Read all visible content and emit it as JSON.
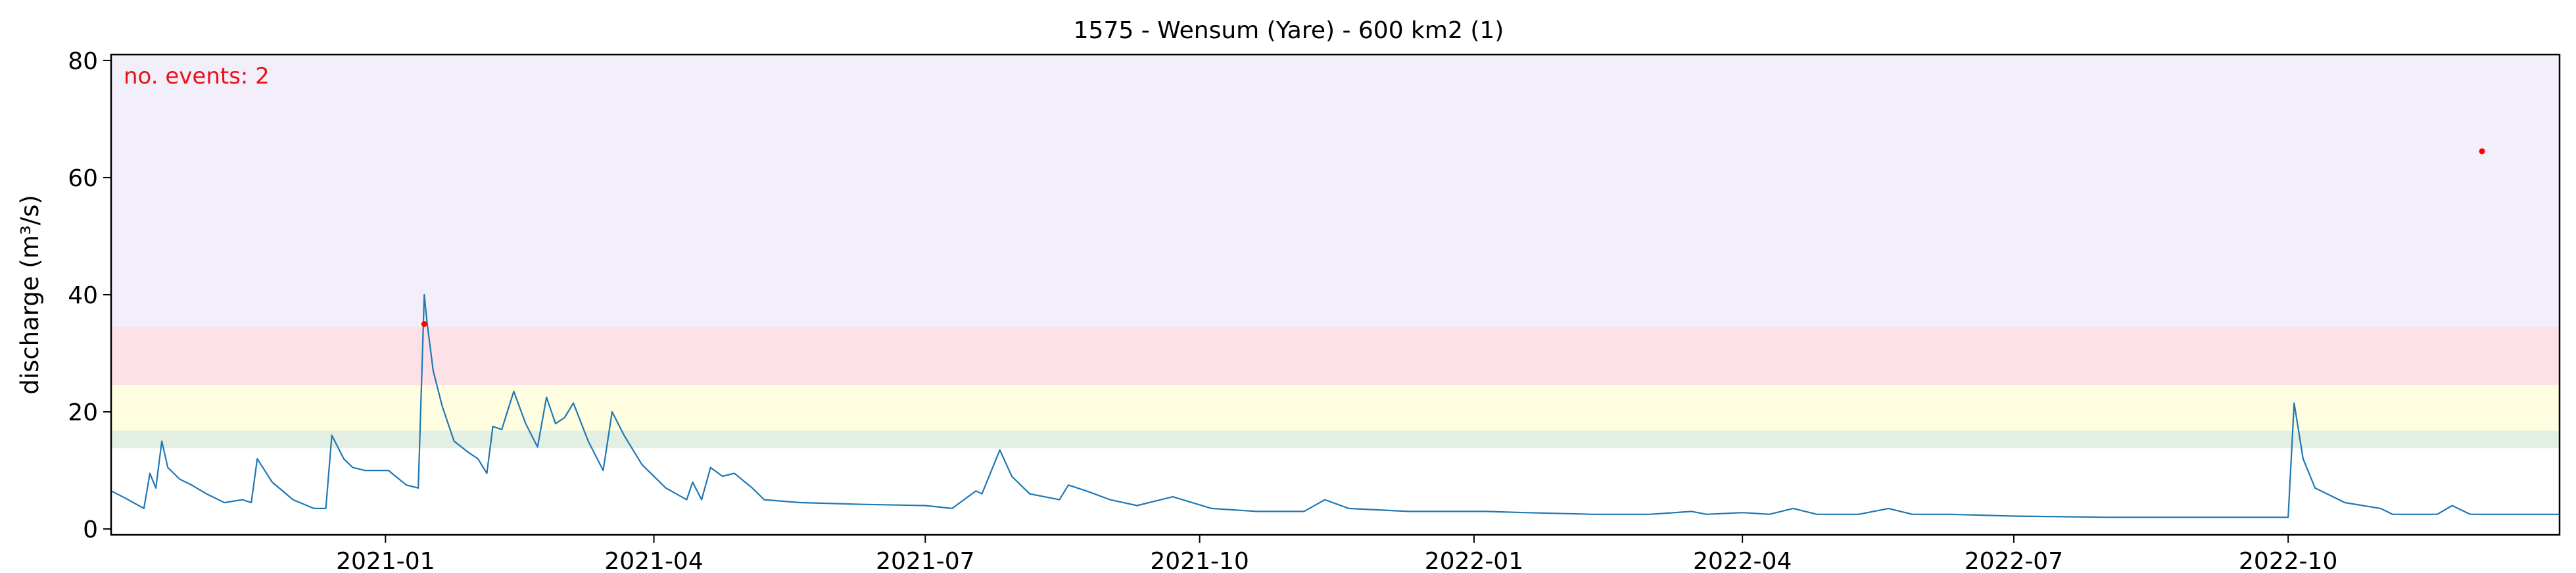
{
  "chart_data": {
    "type": "line",
    "title": "1575 - Wensum (Yare) - 600 km2 (1)",
    "xlabel": "",
    "ylabel": "discharge (m³/s)",
    "annotation": "no. events: 2",
    "xlim": [
      "2020-10-01",
      "2022-12-31"
    ],
    "ylim": [
      -1,
      81
    ],
    "x_ticks": [
      "2021-01-01",
      "2021-04-01",
      "2021-07-01",
      "2021-10-01",
      "2022-01-01",
      "2022-04-01",
      "2022-07-01",
      "2022-10-01"
    ],
    "x_tick_labels": [
      "2021-01",
      "2021-04",
      "2021-07",
      "2021-10",
      "2022-01",
      "2022-04",
      "2022-07",
      "2022-10"
    ],
    "y_ticks": [
      0,
      20,
      40,
      60,
      80
    ],
    "grid": false,
    "threshold_bands": [
      {
        "from": 13.8,
        "to": 16.8,
        "color": "#e2efe2"
      },
      {
        "from": 16.8,
        "to": 24.6,
        "color": "#fefde0"
      },
      {
        "from": 24.6,
        "to": 34.5,
        "color": "#fee1e6"
      },
      {
        "from": 34.5,
        "to": 81,
        "color": "#f2eefa"
      }
    ],
    "series": [
      {
        "color": "#1f77b4",
        "points": [
          [
            "2020-10-01",
            6.5
          ],
          [
            "2020-10-06",
            5.2
          ],
          [
            "2020-10-12",
            3.5
          ],
          [
            "2020-10-14",
            9.5
          ],
          [
            "2020-10-16",
            7.0
          ],
          [
            "2020-10-18",
            15.0
          ],
          [
            "2020-10-20",
            10.5
          ],
          [
            "2020-10-24",
            8.5
          ],
          [
            "2020-10-28",
            7.5
          ],
          [
            "2020-11-02",
            6.0
          ],
          [
            "2020-11-08",
            4.5
          ],
          [
            "2020-11-14",
            5.0
          ],
          [
            "2020-11-17",
            4.5
          ],
          [
            "2020-11-19",
            12.0
          ],
          [
            "2020-11-24",
            8.0
          ],
          [
            "2020-12-01",
            5.0
          ],
          [
            "2020-12-08",
            3.5
          ],
          [
            "2020-12-12",
            3.5
          ],
          [
            "2020-12-14",
            16.0
          ],
          [
            "2020-12-18",
            12.0
          ],
          [
            "2020-12-21",
            10.5
          ],
          [
            "2020-12-25",
            10.0
          ],
          [
            "2021-01-02",
            10.0
          ],
          [
            "2021-01-08",
            7.5
          ],
          [
            "2021-01-12",
            7.0
          ],
          [
            "2021-01-14",
            40.0
          ],
          [
            "2021-01-15",
            35.0
          ],
          [
            "2021-01-17",
            27.0
          ],
          [
            "2021-01-20",
            21.0
          ],
          [
            "2021-01-24",
            15.0
          ],
          [
            "2021-01-29",
            13.0
          ],
          [
            "2021-02-01",
            12.0
          ],
          [
            "2021-02-04",
            9.5
          ],
          [
            "2021-02-06",
            17.5
          ],
          [
            "2021-02-09",
            17.0
          ],
          [
            "2021-02-13",
            23.5
          ],
          [
            "2021-02-17",
            18.0
          ],
          [
            "2021-02-21",
            14.0
          ],
          [
            "2021-02-24",
            22.5
          ],
          [
            "2021-02-27",
            18.0
          ],
          [
            "2021-03-02",
            19.0
          ],
          [
            "2021-03-05",
            21.5
          ],
          [
            "2021-03-10",
            15.0
          ],
          [
            "2021-03-15",
            10.0
          ],
          [
            "2021-03-18",
            20.0
          ],
          [
            "2021-03-22",
            16.0
          ],
          [
            "2021-03-28",
            11.0
          ],
          [
            "2021-04-05",
            7.0
          ],
          [
            "2021-04-12",
            5.0
          ],
          [
            "2021-04-14",
            8.0
          ],
          [
            "2021-04-17",
            5.0
          ],
          [
            "2021-04-20",
            10.5
          ],
          [
            "2021-04-24",
            9.0
          ],
          [
            "2021-04-28",
            9.5
          ],
          [
            "2021-05-04",
            7.0
          ],
          [
            "2021-05-08",
            5.0
          ],
          [
            "2021-05-20",
            4.5
          ],
          [
            "2021-06-10",
            4.2
          ],
          [
            "2021-07-01",
            4.0
          ],
          [
            "2021-07-10",
            3.5
          ],
          [
            "2021-07-18",
            6.5
          ],
          [
            "2021-07-20",
            6.0
          ],
          [
            "2021-07-26",
            13.5
          ],
          [
            "2021-07-30",
            9.0
          ],
          [
            "2021-08-05",
            6.0
          ],
          [
            "2021-08-15",
            5.0
          ],
          [
            "2021-08-18",
            7.5
          ],
          [
            "2021-08-24",
            6.5
          ],
          [
            "2021-09-01",
            5.0
          ],
          [
            "2021-09-10",
            4.0
          ],
          [
            "2021-09-22",
            5.5
          ],
          [
            "2021-10-05",
            3.5
          ],
          [
            "2021-10-20",
            3.0
          ],
          [
            "2021-11-05",
            3.0
          ],
          [
            "2021-11-12",
            5.0
          ],
          [
            "2021-11-20",
            3.5
          ],
          [
            "2021-12-10",
            3.0
          ],
          [
            "2022-01-05",
            3.0
          ],
          [
            "2022-01-18",
            2.8
          ],
          [
            "2022-02-10",
            2.5
          ],
          [
            "2022-03-01",
            2.5
          ],
          [
            "2022-03-15",
            3.0
          ],
          [
            "2022-03-20",
            2.5
          ],
          [
            "2022-04-01",
            2.8
          ],
          [
            "2022-04-10",
            2.5
          ],
          [
            "2022-04-18",
            3.5
          ],
          [
            "2022-04-26",
            2.5
          ],
          [
            "2022-05-10",
            2.5
          ],
          [
            "2022-05-20",
            3.5
          ],
          [
            "2022-05-28",
            2.5
          ],
          [
            "2022-06-10",
            2.5
          ],
          [
            "2022-07-01",
            2.2
          ],
          [
            "2022-08-01",
            2.0
          ],
          [
            "2022-09-01",
            2.0
          ],
          [
            "2022-10-01",
            2.0
          ],
          [
            "2022-10-03",
            21.5
          ],
          [
            "2022-10-06",
            12.0
          ],
          [
            "2022-10-10",
            7.0
          ],
          [
            "2022-10-20",
            4.5
          ],
          [
            "2022-11-01",
            3.5
          ],
          [
            "2022-11-05",
            2.5
          ],
          [
            "2022-11-20",
            2.5
          ],
          [
            "2022-11-25",
            4.0
          ],
          [
            "2022-12-01",
            2.5
          ],
          [
            "2022-12-31",
            2.5
          ]
        ]
      }
    ],
    "events": [
      {
        "x": "2021-01-14",
        "y": 35.0,
        "color": "#ff0000"
      },
      {
        "x": "2022-12-05",
        "y": 64.5,
        "color": "#ff0000"
      }
    ]
  }
}
